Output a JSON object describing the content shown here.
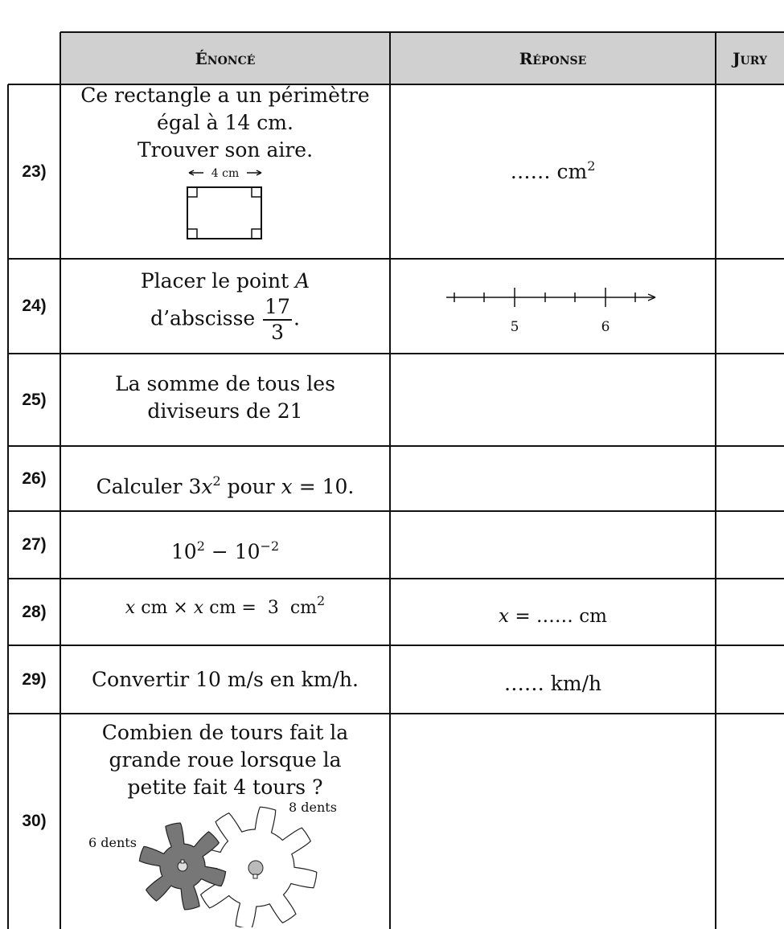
{
  "header": {
    "statement": "Énoncé",
    "answer": "Réponse",
    "jury": "Jury"
  },
  "rows": [
    {
      "number": "23)",
      "statement": [
        [
          "Ce rectangle a un périmètre"
        ],
        [
          "égal à 14 cm."
        ],
        [
          "Trouver son aire."
        ]
      ],
      "figure_label": "4 cm",
      "answer": [
        "…… cm",
        "2"
      ]
    },
    {
      "number": "24)",
      "statement": [
        [
          "Placer le point ",
          "A"
        ],
        [
          "d’abscisse ",
          "17",
          "3",
          "."
        ]
      ],
      "axis_labels": [
        "5",
        "6"
      ]
    },
    {
      "number": "25)",
      "statement": [
        [
          "La somme de tous les"
        ],
        [
          "diviseurs de 21"
        ]
      ]
    },
    {
      "number": "26)",
      "statement": [
        [
          "Calculer 3",
          "x",
          "2",
          " pour ",
          "x",
          " = 10."
        ]
      ]
    },
    {
      "number": "27)",
      "statement": [
        [
          "10",
          "2",
          " − 10",
          "−2"
        ]
      ]
    },
    {
      "number": "28)",
      "statement": [
        [
          "x",
          " cm × ",
          "x",
          " cm =  3  cm",
          "2"
        ]
      ],
      "answer": [
        "x",
        " = …… cm"
      ]
    },
    {
      "number": "29)",
      "statement": [
        [
          "Convertir 10 m/s en km/h."
        ]
      ],
      "answer": [
        "…… km/h"
      ]
    },
    {
      "number": "30)",
      "statement": [
        [
          "Combien de tours fait la"
        ],
        [
          "grande roue lorsque la"
        ],
        [
          "petite fait 4 tours ?"
        ]
      ],
      "gear_labels": [
        "6 dents",
        "8 dents"
      ]
    }
  ]
}
